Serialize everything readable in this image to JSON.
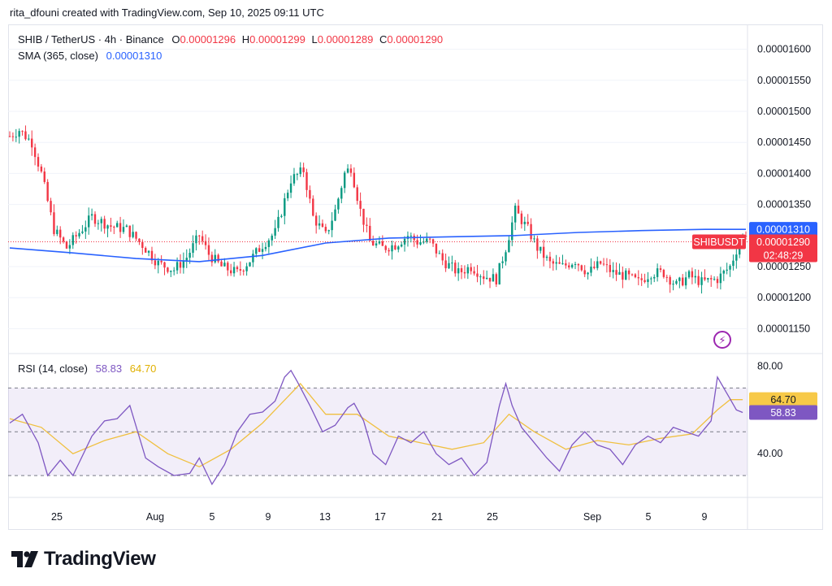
{
  "header": {
    "credit": "rita_dfouni created with TradingView.com, Sep 10, 2025 09:11 UTC"
  },
  "legend": {
    "symbol": "SHIB / TetherUS · 4h · Binance",
    "o_label": "O",
    "o_value": "0.00001296",
    "h_label": "H",
    "h_value": "0.00001299",
    "l_label": "L",
    "l_value": "0.00001289",
    "c_label": "C",
    "c_value": "0.00001290",
    "sma_label": "SMA (365, close)",
    "sma_value": "0.00001310",
    "rsi_label": "RSI (14, close)",
    "rsi_value": "58.83",
    "rsi_ma_value": "64.70"
  },
  "colors": {
    "up": "#089981",
    "down": "#f23645",
    "sma": "#2962ff",
    "rsi": "#7e57c2",
    "rsi_ma": "#f0c040",
    "grid": "#f0f3fa"
  },
  "logo": {
    "text": "TradingView",
    "icon": "tradingview-logo-icon"
  },
  "chart_data": {
    "type": "candlestick",
    "price_axis": {
      "ticks": [
        "0.00001600",
        "0.00001550",
        "0.00001500",
        "0.00001450",
        "0.00001400",
        "0.00001350",
        "0.00001250",
        "0.00001200",
        "0.00001150"
      ],
      "range": [
        1.11e-05,
        1.64e-05
      ]
    },
    "last_price": {
      "symbol": "SHIBUSDT",
      "value": "0.00001290",
      "countdown": "02:48:29"
    },
    "sma_tag": "0.00001310",
    "x_ticks": [
      "25",
      "Aug",
      "5",
      "9",
      "13",
      "17",
      "21",
      "25",
      "Sep",
      "5",
      "9"
    ],
    "price_path": [
      [
        0,
        14.6
      ],
      [
        3,
        14.7
      ],
      [
        7,
        14.5
      ],
      [
        10,
        14.0
      ],
      [
        14,
        13.1
      ],
      [
        18,
        12.8
      ],
      [
        22,
        13.05
      ],
      [
        26,
        13.3
      ],
      [
        32,
        13.15
      ],
      [
        37,
        13.1
      ],
      [
        42,
        12.85
      ],
      [
        47,
        12.55
      ],
      [
        52,
        12.45
      ],
      [
        56,
        12.65
      ],
      [
        60,
        13.0
      ],
      [
        63,
        12.7
      ],
      [
        67,
        12.5
      ],
      [
        72,
        12.4
      ],
      [
        76,
        12.6
      ],
      [
        80,
        12.85
      ],
      [
        84,
        13.05
      ],
      [
        89,
        13.9
      ],
      [
        93,
        14.05
      ],
      [
        96,
        13.3
      ],
      [
        100,
        13.0
      ],
      [
        103,
        13.4
      ],
      [
        106,
        14.0
      ],
      [
        108,
        14.1
      ],
      [
        111,
        13.4
      ],
      [
        114,
        12.9
      ],
      [
        118,
        12.8
      ],
      [
        122,
        12.85
      ],
      [
        126,
        13.0
      ],
      [
        129,
        12.9
      ],
      [
        133,
        12.9
      ],
      [
        137,
        12.6
      ],
      [
        142,
        12.4
      ],
      [
        146,
        12.5
      ],
      [
        150,
        12.35
      ],
      [
        154,
        12.3
      ],
      [
        157,
        12.8
      ],
      [
        160,
        13.4
      ],
      [
        164,
        13.1
      ],
      [
        167,
        12.8
      ],
      [
        171,
        12.55
      ],
      [
        175,
        12.5
      ],
      [
        179,
        12.6
      ],
      [
        183,
        12.4
      ],
      [
        187,
        12.55
      ],
      [
        191,
        12.4
      ],
      [
        195,
        12.35
      ],
      [
        199,
        12.25
      ],
      [
        203,
        12.4
      ],
      [
        207,
        12.4
      ],
      [
        211,
        12.2
      ],
      [
        215,
        12.35
      ],
      [
        219,
        12.25
      ],
      [
        224,
        12.3
      ],
      [
        228,
        12.5
      ],
      [
        231,
        12.9
      ],
      [
        233,
        13.05
      ]
    ],
    "sma_points": [
      [
        0,
        12.8
      ],
      [
        20,
        12.72
      ],
      [
        40,
        12.63
      ],
      [
        60,
        12.58
      ],
      [
        80,
        12.68
      ],
      [
        100,
        12.88
      ],
      [
        120,
        12.96
      ],
      [
        140,
        12.98
      ],
      [
        160,
        13.0
      ],
      [
        180,
        13.05
      ],
      [
        200,
        13.08
      ],
      [
        220,
        13.1
      ],
      [
        233,
        13.1
      ]
    ],
    "rsi_axis": {
      "ticks": [
        "80.00",
        "40.00"
      ],
      "band": [
        30,
        70
      ],
      "mid": 50,
      "range": [
        20,
        85
      ]
    },
    "rsi_tags": {
      "rsi_ma": "64.70",
      "rsi": "58.83"
    },
    "rsi_path": [
      [
        0,
        54
      ],
      [
        4,
        58
      ],
      [
        9,
        45
      ],
      [
        12,
        30
      ],
      [
        16,
        37
      ],
      [
        20,
        30
      ],
      [
        26,
        48
      ],
      [
        30,
        55
      ],
      [
        34,
        56
      ],
      [
        38,
        62
      ],
      [
        43,
        38
      ],
      [
        47,
        34
      ],
      [
        52,
        30
      ],
      [
        57,
        31
      ],
      [
        60,
        38
      ],
      [
        64,
        26
      ],
      [
        68,
        35
      ],
      [
        72,
        50
      ],
      [
        76,
        58
      ],
      [
        80,
        59
      ],
      [
        84,
        64
      ],
      [
        87,
        75
      ],
      [
        89,
        78
      ],
      [
        91,
        73
      ],
      [
        95,
        62
      ],
      [
        99,
        50
      ],
      [
        103,
        53
      ],
      [
        107,
        61
      ],
      [
        109,
        63
      ],
      [
        112,
        55
      ],
      [
        115,
        40
      ],
      [
        119,
        35
      ],
      [
        123,
        48
      ],
      [
        127,
        45
      ],
      [
        131,
        50
      ],
      [
        135,
        40
      ],
      [
        139,
        35
      ],
      [
        143,
        38
      ],
      [
        147,
        30
      ],
      [
        151,
        36
      ],
      [
        155,
        62
      ],
      [
        157,
        72
      ],
      [
        159,
        62
      ],
      [
        162,
        52
      ],
      [
        166,
        45
      ],
      [
        170,
        38
      ],
      [
        174,
        32
      ],
      [
        178,
        44
      ],
      [
        182,
        50
      ],
      [
        186,
        44
      ],
      [
        190,
        42
      ],
      [
        194,
        35
      ],
      [
        198,
        44
      ],
      [
        202,
        48
      ],
      [
        206,
        45
      ],
      [
        210,
        52
      ],
      [
        214,
        50
      ],
      [
        218,
        48
      ],
      [
        222,
        55
      ],
      [
        224,
        75
      ],
      [
        226,
        70
      ],
      [
        228,
        65
      ],
      [
        230,
        60
      ],
      [
        232,
        58.83
      ]
    ],
    "rsi_ma_path": [
      [
        0,
        56
      ],
      [
        10,
        52
      ],
      [
        20,
        40
      ],
      [
        30,
        46
      ],
      [
        40,
        50
      ],
      [
        50,
        40
      ],
      [
        60,
        34
      ],
      [
        70,
        42
      ],
      [
        80,
        54
      ],
      [
        88,
        66
      ],
      [
        92,
        72
      ],
      [
        100,
        58
      ],
      [
        110,
        58
      ],
      [
        120,
        48
      ],
      [
        130,
        45
      ],
      [
        140,
        42
      ],
      [
        150,
        45
      ],
      [
        158,
        58
      ],
      [
        166,
        50
      ],
      [
        176,
        42
      ],
      [
        186,
        46
      ],
      [
        196,
        44
      ],
      [
        206,
        47
      ],
      [
        216,
        49
      ],
      [
        224,
        60
      ],
      [
        228,
        64.7
      ],
      [
        232,
        64.7
      ]
    ]
  }
}
